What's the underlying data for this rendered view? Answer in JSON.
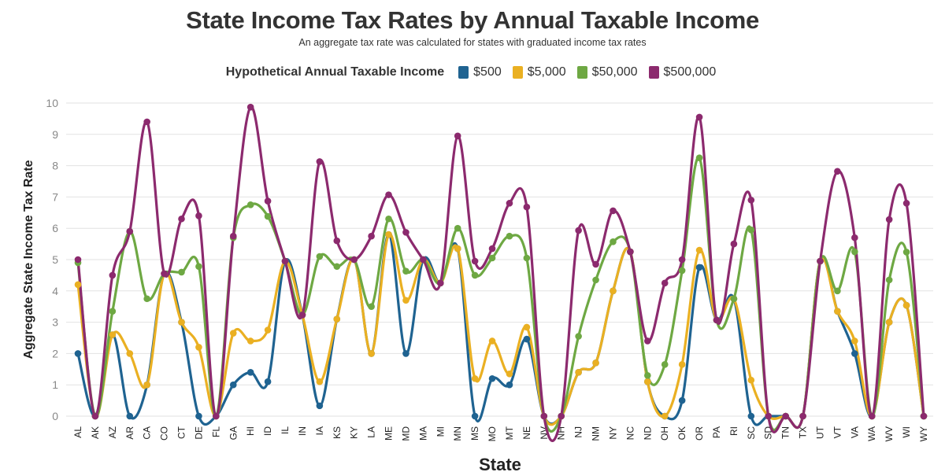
{
  "title": "State Income Tax Rates by Annual Taxable Income",
  "subtitle": "An aggregate tax rate was calculated for states with graduated income tax rates",
  "legend_title": "Hypothetical Annual Taxable Income",
  "chart_data": {
    "type": "line",
    "xlabel": "State",
    "ylabel": "Aggregate State Income Tax Rate",
    "ylim": [
      0,
      10
    ],
    "yticks": [
      "0",
      "1",
      "2",
      "3",
      "4",
      "5",
      "6",
      "7",
      "8",
      "9",
      "10"
    ],
    "grid": true,
    "legend_position": "top-center",
    "categories": [
      "AL",
      "AK",
      "AZ",
      "AR",
      "CA",
      "CO",
      "CT",
      "DE",
      "FL",
      "GA",
      "HI",
      "ID",
      "IL",
      "IN",
      "IA",
      "KS",
      "KY",
      "LA",
      "ME",
      "MD",
      "MA",
      "MI",
      "MN",
      "MS",
      "MO",
      "MT",
      "NE",
      "NV",
      "NH",
      "NJ",
      "NM",
      "NY",
      "NC",
      "ND",
      "OH",
      "OK",
      "OR",
      "PA",
      "RI",
      "SC",
      "SD",
      "TN",
      "TX",
      "UT",
      "VT",
      "VA",
      "WA",
      "WV",
      "WI",
      "WY"
    ],
    "series": [
      {
        "name": "$500",
        "color": "#1f6391",
        "values": [
          2.0,
          0,
          2.6,
          0,
          1.0,
          4.55,
          3.0,
          0,
          0,
          1.0,
          1.4,
          1.1,
          4.95,
          3.23,
          0.33,
          3.1,
          5.0,
          2.0,
          5.8,
          2.0,
          5.0,
          4.25,
          5.35,
          0,
          1.2,
          1.0,
          2.46,
          0,
          0,
          1.4,
          1.7,
          4.0,
          5.25,
          1.1,
          0,
          0.5,
          4.75,
          3.07,
          3.75,
          0,
          0,
          0,
          0,
          4.95,
          3.35,
          2.0,
          0,
          3.0,
          3.54,
          0
        ]
      },
      {
        "name": "$5,000",
        "color": "#eab022",
        "values": [
          4.2,
          0,
          2.6,
          2.0,
          1.0,
          4.55,
          3.0,
          2.2,
          0,
          2.65,
          2.4,
          2.75,
          4.95,
          3.23,
          1.1,
          3.1,
          5.0,
          2.0,
          5.8,
          3.7,
          5.0,
          4.25,
          5.35,
          1.2,
          2.4,
          1.35,
          2.84,
          0,
          0,
          1.4,
          1.7,
          4.0,
          5.25,
          1.1,
          0,
          1.65,
          5.3,
          3.07,
          3.75,
          1.15,
          0,
          0,
          0,
          4.95,
          3.35,
          2.4,
          0,
          3.0,
          3.54,
          0
        ]
      },
      {
        "name": "$50,000",
        "color": "#6ea843",
        "values": [
          4.9,
          0,
          3.35,
          5.9,
          3.75,
          4.55,
          4.6,
          4.78,
          0,
          5.7,
          6.75,
          6.38,
          4.95,
          3.23,
          5.1,
          4.78,
          5.0,
          3.5,
          6.3,
          4.63,
          5.0,
          4.25,
          6.0,
          4.5,
          5.05,
          5.75,
          5.05,
          0,
          0,
          2.55,
          4.35,
          5.57,
          5.25,
          1.3,
          1.65,
          4.65,
          8.25,
          3.07,
          3.75,
          5.95,
          0,
          0,
          0,
          4.95,
          4.0,
          5.25,
          0,
          4.35,
          5.24,
          0
        ]
      },
      {
        "name": "$500,000",
        "color": "#8c2a6e",
        "values": [
          5.0,
          0,
          4.5,
          5.9,
          9.4,
          4.55,
          6.3,
          6.4,
          0,
          5.75,
          9.87,
          6.87,
          4.95,
          3.23,
          8.13,
          5.6,
          5.0,
          5.75,
          7.07,
          5.87,
          5.0,
          4.25,
          8.95,
          4.95,
          5.35,
          6.8,
          6.68,
          0,
          0,
          5.93,
          4.85,
          6.56,
          5.25,
          2.4,
          4.25,
          5.0,
          9.55,
          3.07,
          5.5,
          6.9,
          0,
          0,
          0,
          4.95,
          7.82,
          5.7,
          0,
          6.28,
          6.8,
          0
        ]
      }
    ]
  }
}
